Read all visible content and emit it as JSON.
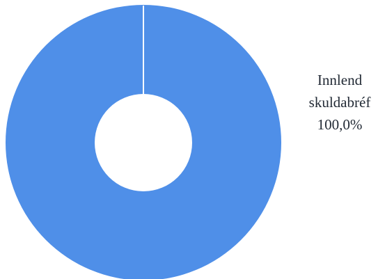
{
  "chart_data": {
    "type": "pie",
    "variant": "donut",
    "title": "",
    "slices": [
      {
        "name": "Innlend skuldabréf",
        "value": 100.0,
        "percent_label": "100,0%",
        "label_lines": [
          "Innlend",
          "skuldabréf",
          "100,0%"
        ],
        "color": "#4f8fe8"
      }
    ],
    "legend": "none",
    "separator_color": "#ffffff"
  }
}
